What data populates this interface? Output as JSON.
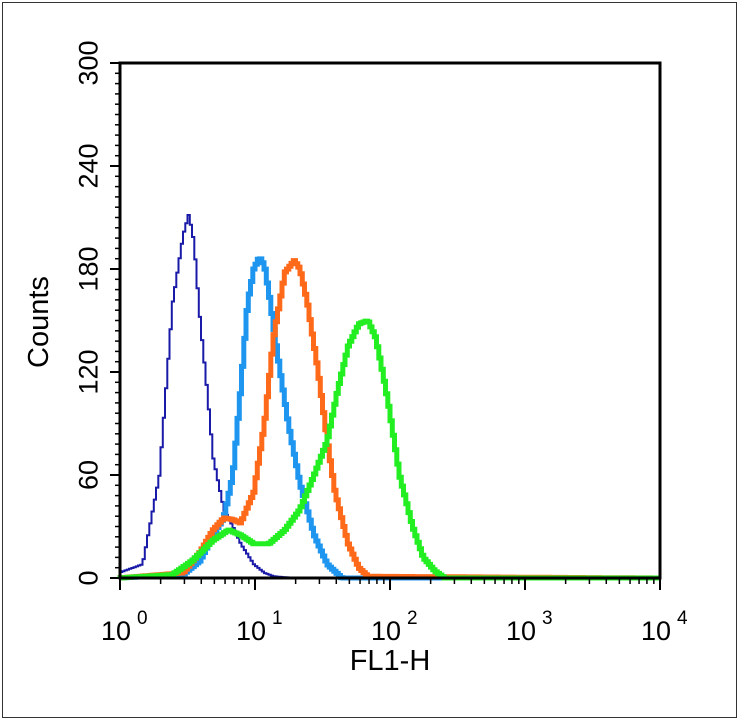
{
  "chart_data": {
    "type": "line",
    "xlabel": "FL1-H",
    "ylabel": "Counts",
    "xscale": "log",
    "xlim": [
      1,
      10000
    ],
    "ylim": [
      0,
      300
    ],
    "grid": false,
    "x_ticks": [
      {
        "base": "10",
        "exp": "0",
        "value": 1
      },
      {
        "base": "10",
        "exp": "1",
        "value": 10
      },
      {
        "base": "10",
        "exp": "2",
        "value": 100
      },
      {
        "base": "10",
        "exp": "3",
        "value": 1000
      },
      {
        "base": "10",
        "exp": "4",
        "value": 10000
      }
    ],
    "y_ticks": [
      "0",
      "60",
      "120",
      "180",
      "240",
      "300"
    ],
    "series": [
      {
        "color": "#1a1aa8",
        "x": [
          1.0,
          1.5,
          2.0,
          2.5,
          3.0,
          3.3,
          3.6,
          4.0,
          4.5,
          5.0,
          6.0,
          7.0,
          8.0,
          10.0,
          12.0,
          14.0,
          20.0,
          10000
        ],
        "y": [
          3,
          8,
          60,
          160,
          200,
          212,
          196,
          150,
          110,
          70,
          40,
          30,
          20,
          8,
          3,
          1,
          0,
          0
        ]
      },
      {
        "color": "#1e96ef",
        "x": [
          1.0,
          3.0,
          4.0,
          5.0,
          6.0,
          7.0,
          8.0,
          9.0,
          10.0,
          11.0,
          12.0,
          13.0,
          15.0,
          18.0,
          22.0,
          28.0,
          35.0,
          45.0,
          10000
        ],
        "y": [
          0,
          2,
          10,
          25,
          35,
          60,
          110,
          160,
          180,
          187,
          182,
          165,
          130,
          90,
          55,
          25,
          8,
          0,
          0
        ]
      },
      {
        "color": "#ff6a1a",
        "x": [
          1.0,
          3.0,
          4.0,
          5.0,
          6.0,
          7.0,
          8.0,
          10.0,
          12.0,
          14.0,
          17.0,
          20.0,
          22.0,
          25.0,
          30.0,
          35.0,
          40.0,
          50.0,
          60.0,
          70.0,
          10000
        ],
        "y": [
          0,
          3,
          15,
          28,
          35,
          34,
          32,
          50,
          90,
          140,
          178,
          185,
          180,
          160,
          120,
          80,
          50,
          20,
          6,
          1,
          0
        ]
      },
      {
        "color": "#22ee22",
        "x": [
          1.0,
          2.5,
          3.5,
          5.0,
          6.5,
          8.0,
          10.0,
          13.0,
          17.0,
          22.0,
          28.0,
          35.0,
          42.0,
          50.0,
          60.0,
          70.0,
          80.0,
          90.0,
          100.0,
          120.0,
          150.0,
          180.0,
          220.0,
          260.0,
          10000
        ],
        "y": [
          0,
          2,
          10,
          22,
          28,
          25,
          20,
          20,
          28,
          40,
          60,
          80,
          110,
          135,
          148,
          150,
          140,
          120,
          100,
          60,
          30,
          12,
          4,
          0,
          0
        ]
      }
    ]
  }
}
